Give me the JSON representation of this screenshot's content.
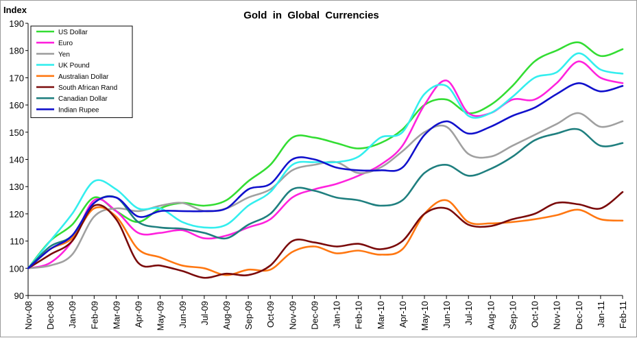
{
  "chart_data": {
    "type": "line",
    "title": "Gold  in  Global  Currencies",
    "ylabel": "Index",
    "xlabel": "",
    "ylim": [
      90,
      190
    ],
    "yticks": [
      90,
      100,
      110,
      120,
      130,
      140,
      150,
      160,
      170,
      180,
      190
    ],
    "grid": false,
    "legend_position": "top-left",
    "categories": [
      "Nov-08",
      "Dec-08",
      "Jan-09",
      "Feb-09",
      "Mar-09",
      "Apr-09",
      "May-09",
      "Jun-09",
      "Jul-09",
      "Aug-09",
      "Sep-09",
      "Oct-09",
      "Nov-09",
      "Dec-09",
      "Jan-10",
      "Feb-10",
      "Mar-10",
      "Apr-10",
      "May-10",
      "Jun-10",
      "Jul-10",
      "Aug-10",
      "Sep-10",
      "Oct-10",
      "Nov-10",
      "Dec-10",
      "Jan-11",
      "Feb-11"
    ],
    "series": [
      {
        "name": "US Dollar",
        "color": "#33dd33",
        "values": [
          100,
          110,
          116,
          126,
          121,
          117,
          122,
          124,
          123,
          125,
          132,
          138,
          148,
          148,
          146,
          144,
          146,
          151,
          160,
          162,
          157,
          160,
          167,
          176,
          180,
          183,
          178,
          180.5
        ]
      },
      {
        "name": "Euro",
        "color": "#ff22dd",
        "values": [
          100,
          102,
          110,
          125,
          121,
          113,
          113,
          114,
          111,
          112,
          115,
          118,
          126,
          129,
          131,
          134,
          138,
          145,
          160,
          169,
          157,
          157,
          162,
          162,
          168,
          176,
          170,
          168
        ]
      },
      {
        "name": "Yen",
        "color": "#a0a0a0",
        "values": [
          100,
          101,
          105,
          119,
          122,
          121,
          123,
          124,
          121,
          122,
          126,
          129,
          136,
          138,
          139,
          135,
          137,
          143,
          150,
          152,
          142,
          141,
          145,
          149,
          153,
          157,
          152,
          154
        ]
      },
      {
        "name": "UK Pound",
        "color": "#33eeee",
        "values": [
          100,
          110,
          120,
          132,
          129,
          122,
          122,
          117,
          115,
          116,
          123,
          128,
          138,
          139,
          139,
          141,
          148,
          150,
          164,
          167,
          156,
          157,
          163,
          170,
          172,
          179,
          173,
          171.5
        ]
      },
      {
        "name": "Australian Dollar",
        "color": "#ff7711",
        "values": [
          100,
          107,
          111,
          122,
          119,
          107,
          104,
          101,
          100,
          97.5,
          99.5,
          99.5,
          106,
          108,
          105.5,
          106.5,
          105,
          107,
          120,
          125,
          117,
          116.5,
          117,
          118,
          119.5,
          121.5,
          118,
          117.5
        ]
      },
      {
        "name": "South African Rand",
        "color": "#7a0a0a",
        "values": [
          100,
          105,
          110,
          123,
          118,
          102,
          101,
          99,
          96.5,
          98,
          97.5,
          101,
          110,
          109.5,
          108,
          109,
          107,
          110,
          120,
          122,
          116,
          115.5,
          118,
          120,
          124,
          123.5,
          122,
          128
        ]
      },
      {
        "name": "Canadian Dollar",
        "color": "#1f7f7f",
        "values": [
          100,
          108,
          112,
          124,
          126,
          117,
          115,
          114.5,
          113,
          111,
          116,
          120,
          129,
          128.5,
          126,
          125,
          123,
          125,
          135,
          138,
          134,
          136.5,
          141,
          147,
          149.5,
          151,
          145,
          146
        ]
      },
      {
        "name": "Indian Rupee",
        "color": "#1111cc",
        "values": [
          100,
          107,
          112,
          124,
          126,
          119,
          121,
          121,
          121,
          122,
          129,
          131,
          140,
          140,
          137,
          136,
          136,
          137,
          149,
          154,
          149.5,
          152,
          156,
          159,
          164,
          168,
          165,
          167
        ]
      }
    ]
  }
}
